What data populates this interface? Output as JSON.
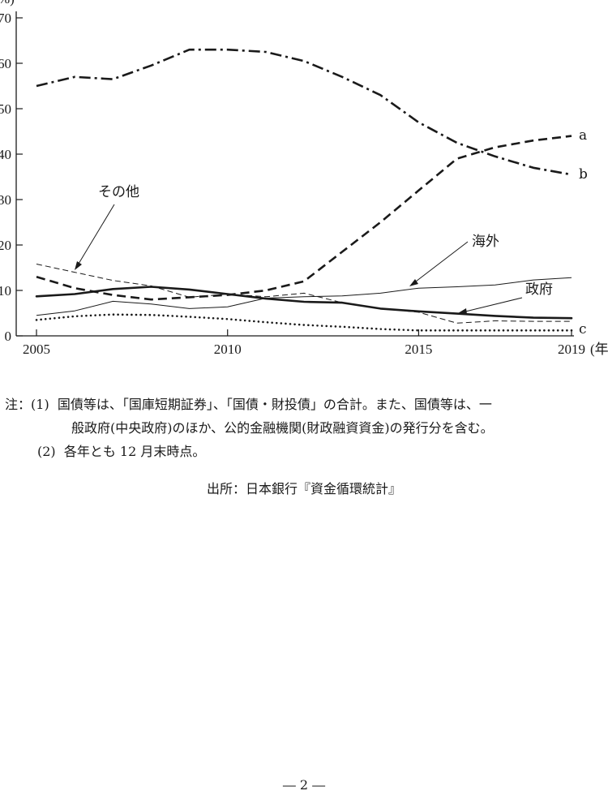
{
  "chart_data": {
    "type": "line",
    "y_unit_fragment": "%)",
    "x_unit_fragment": "(年",
    "ylim": [
      0,
      70
    ],
    "xlim": [
      2005,
      2019
    ],
    "y_ticks": [
      "0",
      "10",
      "20",
      "30",
      "40",
      "50",
      "60",
      "70"
    ],
    "y_tick_values": [
      0,
      10,
      20,
      30,
      40,
      50,
      60,
      70
    ],
    "x_ticks": [
      "2005",
      "2010",
      "2015",
      "2019"
    ],
    "x_tick_values": [
      2005,
      2010,
      2015,
      2019
    ],
    "grid": false,
    "x": [
      2005,
      2006,
      2007,
      2008,
      2009,
      2010,
      2011,
      2012,
      2013,
      2014,
      2015,
      2016,
      2017,
      2018,
      2019
    ],
    "series": [
      {
        "name": "a",
        "style": "dashed-thick",
        "values": [
          13,
          10.5,
          9,
          8,
          8.5,
          9,
          10,
          12,
          18.5,
          25,
          32,
          39,
          41.5,
          43,
          44
        ]
      },
      {
        "name": "b",
        "style": "dashdot-thick",
        "values": [
          55,
          57,
          56.5,
          59.5,
          63,
          63,
          62.5,
          60.5,
          57,
          53,
          47,
          42.5,
          39.5,
          37,
          35.5
        ]
      },
      {
        "name": "c",
        "style": "dotted",
        "values": [
          3.5,
          4.3,
          4.7,
          4.6,
          4.2,
          3.7,
          3,
          2.4,
          2,
          1.5,
          1.2,
          1.2,
          1.2,
          1.2,
          1.2
        ]
      },
      {
        "name": "その他",
        "style": "thin-dashed",
        "values": [
          15.8,
          14,
          12.2,
          11,
          8.5,
          9.2,
          8.6,
          9.4,
          7.3,
          6,
          5.2,
          2.8,
          3.3,
          3.2,
          3.2
        ]
      },
      {
        "name": "海外",
        "style": "thin-solid",
        "values": [
          4.5,
          5.5,
          7.6,
          7,
          6,
          6.4,
          8.3,
          8.6,
          8.8,
          9.4,
          10.5,
          10.8,
          11.2,
          12.3,
          12.8
        ]
      },
      {
        "name": "政府",
        "style": "solid-thick",
        "values": [
          8.7,
          9.2,
          10.3,
          10.8,
          10.2,
          9.2,
          8.2,
          7.5,
          7.3,
          6,
          5.4,
          4.9,
          4.4,
          4,
          3.9
        ]
      }
    ],
    "series_labels": {
      "a": "a",
      "b": "b",
      "c": "c",
      "other": "その他",
      "overseas": "海外",
      "government": "政府"
    }
  },
  "notes": {
    "prefix": "注：",
    "note1_num": "(1)",
    "note1_line1": "国債等は、「国庫短期証券」、「国債・財投債」の合計。また、国債等は、一",
    "note1_line2": "般政府(中央政府)のほか、公的金融機関(財政融資資金)の発行分を含む。",
    "note2_num": "(2)",
    "note2_text": "各年とも 12 月末時点。"
  },
  "source": "出所：日本銀行『資金循環統計』",
  "page_number": "― 2 ―"
}
